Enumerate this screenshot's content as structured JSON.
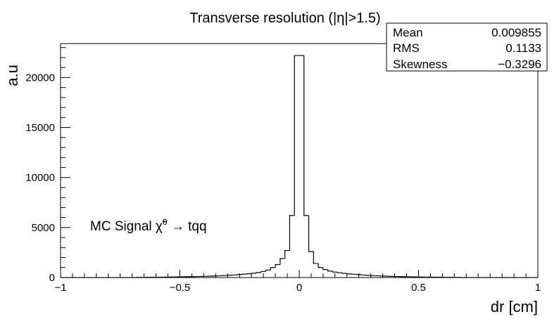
{
  "chart_data": {
    "type": "bar",
    "title": "Transverse resolution (|η|>1.5)",
    "xlabel": "dr [cm]",
    "ylabel": "a.u",
    "xlim": [
      -1,
      1
    ],
    "ylim": [
      0,
      23400
    ],
    "x_ticks": [
      -1,
      -0.5,
      0,
      0.5,
      1
    ],
    "x_tick_labels": [
      "−1",
      "−0.5",
      "0",
      "0.5",
      "1"
    ],
    "y_ticks": [
      0,
      5000,
      10000,
      15000,
      20000
    ],
    "y_tick_labels": [
      "0",
      "5000",
      "10000",
      "15000",
      "20000"
    ],
    "grid": false,
    "legend": "none",
    "line_color": "#000000",
    "bin_edges": [
      -1.0,
      -0.98,
      -0.96,
      -0.94,
      -0.92,
      -0.9,
      -0.88,
      -0.86,
      -0.84,
      -0.82,
      -0.8,
      -0.78,
      -0.76,
      -0.74,
      -0.72,
      -0.7,
      -0.68,
      -0.66,
      -0.64,
      -0.62,
      -0.6,
      -0.58,
      -0.56,
      -0.54,
      -0.52,
      -0.5,
      -0.48,
      -0.46,
      -0.44,
      -0.42,
      -0.4,
      -0.38,
      -0.36,
      -0.34,
      -0.32,
      -0.3,
      -0.28,
      -0.26,
      -0.24,
      -0.22,
      -0.2,
      -0.18,
      -0.16,
      -0.14,
      -0.12,
      -0.1,
      -0.08,
      -0.06,
      -0.04,
      -0.02,
      0.0,
      0.02,
      0.04,
      0.06,
      0.08,
      0.1,
      0.12,
      0.14,
      0.16,
      0.18,
      0.2,
      0.22,
      0.24,
      0.26,
      0.28,
      0.3,
      0.32,
      0.34,
      0.36,
      0.38,
      0.4,
      0.42,
      0.44,
      0.46,
      0.48,
      0.5,
      0.52,
      0.54,
      0.56,
      0.58,
      0.6,
      0.62,
      0.64,
      0.66,
      0.68,
      0.7,
      0.72,
      0.74,
      0.76,
      0.78,
      0.8,
      0.82,
      0.84,
      0.86,
      0.88,
      0.9,
      0.92,
      0.94,
      0.96,
      0.98,
      1.0
    ],
    "values": [
      0,
      0,
      0,
      0,
      0,
      0,
      0,
      0,
      0,
      0,
      0,
      0,
      0,
      0,
      0,
      0,
      15,
      20,
      25,
      30,
      35,
      40,
      45,
      55,
      60,
      70,
      80,
      90,
      100,
      110,
      120,
      140,
      160,
      180,
      200,
      230,
      260,
      300,
      340,
      380,
      430,
      500,
      600,
      750,
      1000,
      1300,
      1900,
      2700,
      6200,
      22200,
      22200,
      6200,
      2600,
      1400,
      1000,
      800,
      650,
      550,
      480,
      420,
      370,
      330,
      290,
      250,
      220,
      190,
      170,
      150,
      130,
      115,
      100,
      90,
      80,
      70,
      60,
      55,
      50,
      45,
      40,
      35,
      30,
      25,
      20,
      15,
      0,
      0,
      0,
      0,
      0,
      0,
      0,
      0,
      0,
      0,
      0,
      0,
      0,
      0,
      0,
      0
    ]
  },
  "stats_box": {
    "rows": [
      {
        "label": "Mean",
        "value": "0.009855"
      },
      {
        "label": "RMS",
        "value": "0.1133"
      },
      {
        "label": "Skewness",
        "value": "−0.3296"
      }
    ]
  },
  "annotation": {
    "text": "MC Signal χ̃",
    "superscript": "0",
    "suffix": " → tqq"
  }
}
